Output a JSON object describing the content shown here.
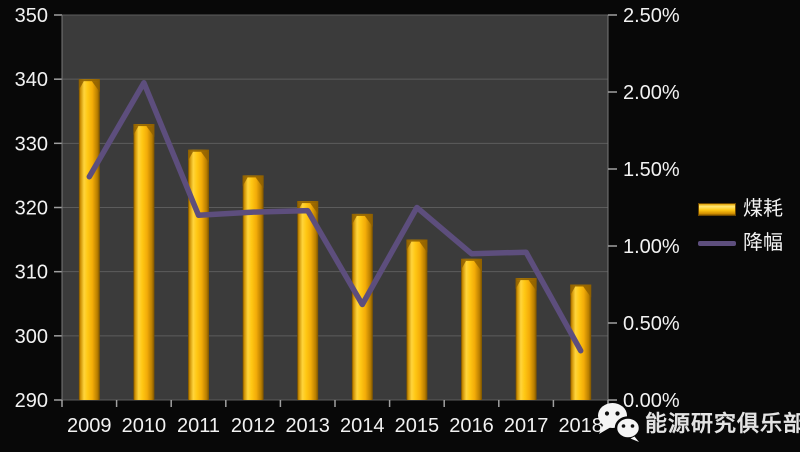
{
  "chart_data": {
    "type": "combo",
    "title": "",
    "categories": [
      "2009",
      "2010",
      "2011",
      "2012",
      "2013",
      "2014",
      "2015",
      "2016",
      "2017",
      "2018"
    ],
    "series": [
      {
        "name": "煤耗",
        "type": "bar",
        "axis": "left",
        "values": [
          340,
          333,
          329,
          325,
          321,
          319,
          315,
          312,
          309,
          308
        ]
      },
      {
        "name": "降幅",
        "type": "line",
        "axis": "right",
        "values": [
          1.45,
          2.06,
          1.2,
          1.22,
          1.23,
          0.62,
          1.25,
          0.95,
          0.96,
          0.32
        ]
      }
    ],
    "left_axis": {
      "min": 290,
      "max": 350,
      "step": 10,
      "tick_labels": [
        "290",
        "300",
        "310",
        "320",
        "330",
        "340",
        "350"
      ]
    },
    "right_axis": {
      "min": 0,
      "max": 2.5,
      "step": 0.5,
      "tick_labels": [
        "0.00%",
        "0.50%",
        "1.00%",
        "1.50%",
        "2.00%",
        "2.50%"
      ]
    },
    "grid": "horizontal lines at left-axis steps",
    "legend_position": "right-middle"
  },
  "watermark": {
    "icon": "wechat-logo-icon",
    "text": "能源研究俱乐部"
  },
  "colors": {
    "background": "#080808",
    "plot_background": "#3B3B3B",
    "gridline": "#5C5C5C",
    "plot_border": "#787878",
    "tick": "#A0A0A0",
    "axis_text": "#F2F2F2",
    "bar_dark_edge": "#6B4600",
    "bar_bright": "#FFD43C",
    "bar_mid": "#F3AC08",
    "bar_top_notch": "#8F6000",
    "line": "#5D4E7D",
    "watermark_text": "#E3E3E3"
  }
}
